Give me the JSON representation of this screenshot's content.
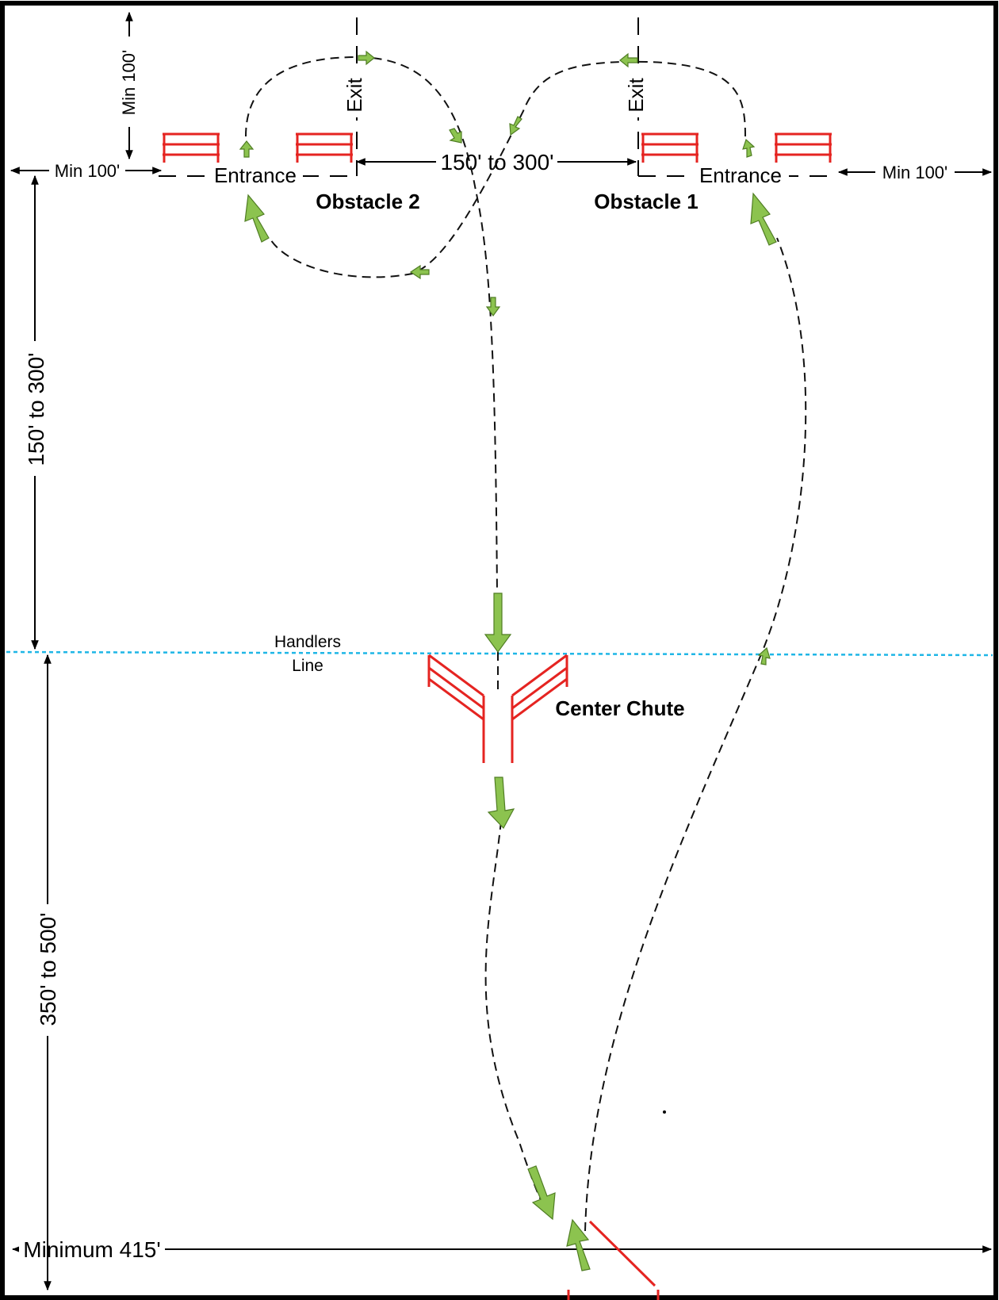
{
  "diagram": {
    "dimensions": {
      "top_min": "Min 100'",
      "left_min": "Min 100'",
      "right_min": "Min 100'",
      "between_obstacles": "150' to 300'",
      "obstacle_to_handlers": "150' to 300'",
      "handlers_to_bottom": "350' to 500'",
      "bottom_width": "Minimum 415'"
    },
    "obstacles": [
      {
        "name": "Obstacle 2",
        "entrance": "Entrance",
        "exit": "Exit"
      },
      {
        "name": "Obstacle 1",
        "entrance": "Entrance",
        "exit": "Exit"
      }
    ],
    "handlers_line": {
      "line1": "Handlers",
      "line2": "Line"
    },
    "center_chute": "Center Chute",
    "colors": {
      "fence": "#e52421",
      "arrow": "#8cc34f",
      "handlers_line": "#1fb6e6",
      "path": "#111111"
    }
  }
}
